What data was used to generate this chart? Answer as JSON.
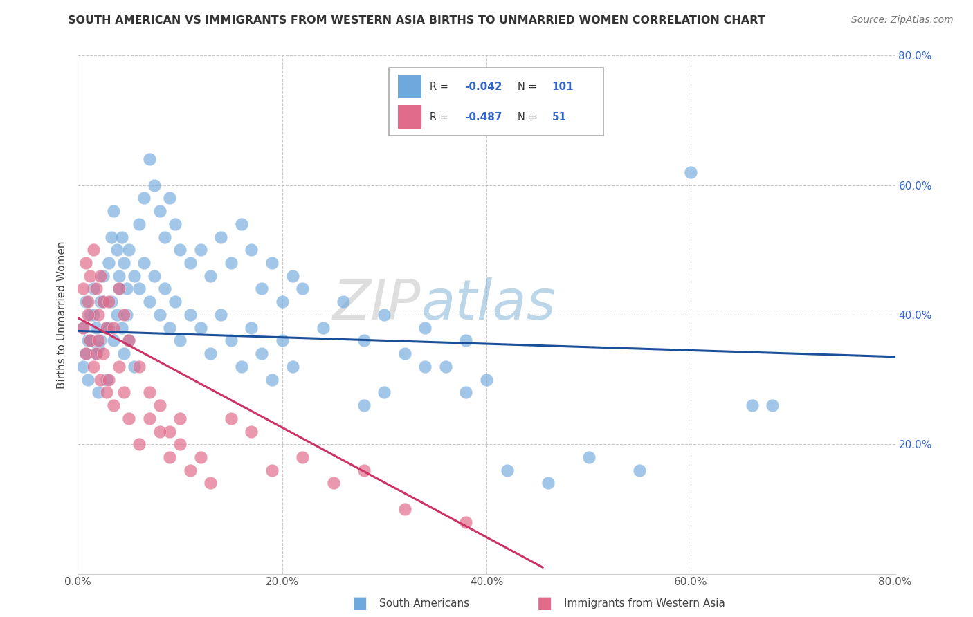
{
  "title": "SOUTH AMERICAN VS IMMIGRANTS FROM WESTERN ASIA BIRTHS TO UNMARRIED WOMEN CORRELATION CHART",
  "source": "Source: ZipAtlas.com",
  "ylabel": "Births to Unmarried Women",
  "x_min": 0.0,
  "x_max": 0.8,
  "y_min": 0.0,
  "y_max": 0.8,
  "r_blue": -0.042,
  "n_blue": 101,
  "r_pink": -0.487,
  "n_pink": 51,
  "blue_color": "#6fa8dc",
  "pink_color": "#e06c8a",
  "blue_line_color": "#1a4f99",
  "pink_line_color": "#cc3366",
  "legend_label_blue": "South Americans",
  "legend_label_pink": "Immigrants from Western Asia",
  "blue_trend_x0": 0.0,
  "blue_trend_x1": 0.8,
  "blue_trend_y0": 0.375,
  "blue_trend_y1": 0.335,
  "pink_trend_x0": 0.0,
  "pink_trend_x1": 0.455,
  "pink_trend_y0": 0.395,
  "pink_trend_y1": 0.01,
  "blue_x": [
    0.005,
    0.008,
    0.01,
    0.012,
    0.015,
    0.018,
    0.02,
    0.022,
    0.025,
    0.028,
    0.005,
    0.008,
    0.01,
    0.012,
    0.015,
    0.018,
    0.02,
    0.022,
    0.025,
    0.028,
    0.03,
    0.033,
    0.035,
    0.038,
    0.04,
    0.043,
    0.045,
    0.048,
    0.05,
    0.055,
    0.03,
    0.033,
    0.035,
    0.038,
    0.04,
    0.043,
    0.045,
    0.048,
    0.05,
    0.055,
    0.06,
    0.065,
    0.07,
    0.075,
    0.08,
    0.085,
    0.09,
    0.095,
    0.1,
    0.11,
    0.06,
    0.065,
    0.07,
    0.075,
    0.08,
    0.085,
    0.09,
    0.095,
    0.1,
    0.11,
    0.12,
    0.13,
    0.14,
    0.15,
    0.16,
    0.17,
    0.18,
    0.19,
    0.2,
    0.21,
    0.12,
    0.13,
    0.14,
    0.15,
    0.16,
    0.17,
    0.18,
    0.19,
    0.2,
    0.21,
    0.22,
    0.24,
    0.26,
    0.28,
    0.3,
    0.32,
    0.34,
    0.36,
    0.38,
    0.4,
    0.28,
    0.3,
    0.34,
    0.38,
    0.42,
    0.46,
    0.5,
    0.55,
    0.6,
    0.66,
    0.68
  ],
  "blue_y": [
    0.38,
    0.42,
    0.36,
    0.4,
    0.44,
    0.38,
    0.35,
    0.42,
    0.46,
    0.38,
    0.32,
    0.34,
    0.3,
    0.36,
    0.4,
    0.34,
    0.28,
    0.36,
    0.42,
    0.3,
    0.48,
    0.52,
    0.56,
    0.5,
    0.46,
    0.52,
    0.48,
    0.44,
    0.5,
    0.46,
    0.38,
    0.42,
    0.36,
    0.4,
    0.44,
    0.38,
    0.34,
    0.4,
    0.36,
    0.32,
    0.54,
    0.58,
    0.64,
    0.6,
    0.56,
    0.52,
    0.58,
    0.54,
    0.5,
    0.48,
    0.44,
    0.48,
    0.42,
    0.46,
    0.4,
    0.44,
    0.38,
    0.42,
    0.36,
    0.4,
    0.5,
    0.46,
    0.52,
    0.48,
    0.54,
    0.5,
    0.44,
    0.48,
    0.42,
    0.46,
    0.38,
    0.34,
    0.4,
    0.36,
    0.32,
    0.38,
    0.34,
    0.3,
    0.36,
    0.32,
    0.44,
    0.38,
    0.42,
    0.36,
    0.4,
    0.34,
    0.38,
    0.32,
    0.36,
    0.3,
    0.26,
    0.28,
    0.32,
    0.28,
    0.16,
    0.14,
    0.18,
    0.16,
    0.62,
    0.26,
    0.26
  ],
  "pink_x": [
    0.005,
    0.008,
    0.01,
    0.012,
    0.015,
    0.018,
    0.02,
    0.022,
    0.025,
    0.028,
    0.005,
    0.008,
    0.01,
    0.012,
    0.015,
    0.018,
    0.02,
    0.022,
    0.025,
    0.028,
    0.03,
    0.035,
    0.04,
    0.045,
    0.05,
    0.06,
    0.07,
    0.08,
    0.09,
    0.1,
    0.03,
    0.035,
    0.04,
    0.045,
    0.05,
    0.06,
    0.07,
    0.08,
    0.09,
    0.1,
    0.11,
    0.12,
    0.13,
    0.15,
    0.17,
    0.19,
    0.22,
    0.25,
    0.28,
    0.32,
    0.38
  ],
  "pink_y": [
    0.44,
    0.48,
    0.42,
    0.46,
    0.5,
    0.44,
    0.4,
    0.46,
    0.42,
    0.38,
    0.38,
    0.34,
    0.4,
    0.36,
    0.32,
    0.34,
    0.36,
    0.3,
    0.34,
    0.28,
    0.42,
    0.38,
    0.44,
    0.4,
    0.36,
    0.32,
    0.28,
    0.26,
    0.22,
    0.24,
    0.3,
    0.26,
    0.32,
    0.28,
    0.24,
    0.2,
    0.24,
    0.22,
    0.18,
    0.2,
    0.16,
    0.18,
    0.14,
    0.24,
    0.22,
    0.16,
    0.18,
    0.14,
    0.16,
    0.1,
    0.08
  ]
}
